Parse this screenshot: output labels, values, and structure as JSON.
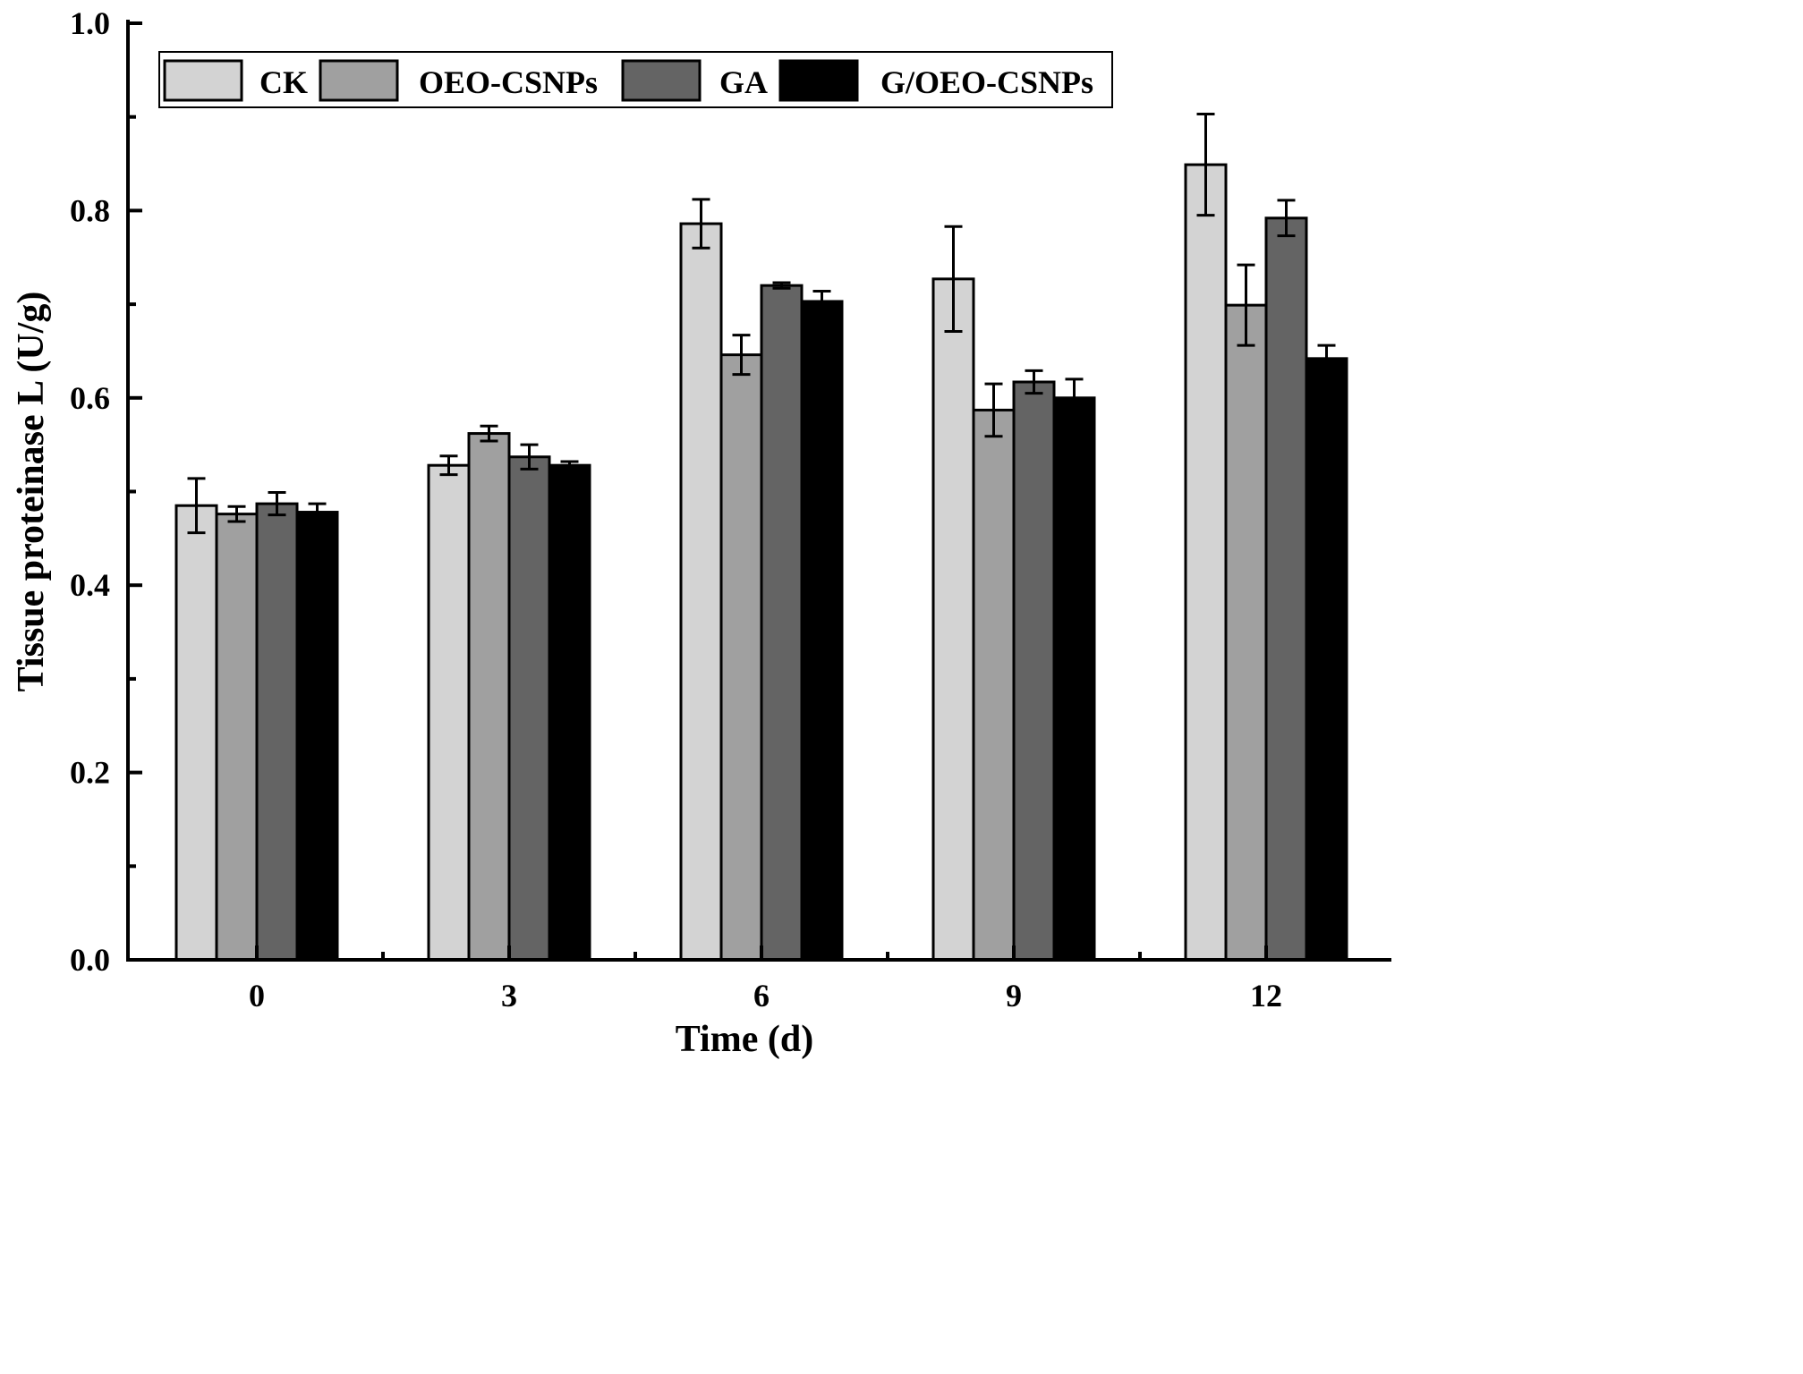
{
  "chart_data": {
    "type": "bar",
    "title": "",
    "xlabel": "Time (d)",
    "ylabel": "Tissue proteinase L (U/g)",
    "ylim": [
      0.0,
      1.0
    ],
    "yticks": [
      "0.0",
      "0.2",
      "0.4",
      "0.6",
      "0.8",
      "1.0"
    ],
    "categories": [
      "0",
      "3",
      "6",
      "9",
      "12"
    ],
    "legend_position": "top",
    "series": [
      {
        "name": "CK",
        "color": "#d3d3d3",
        "values": [
          0.485,
          0.528,
          0.786,
          0.727,
          0.849
        ],
        "errors": [
          0.029,
          0.01,
          0.026,
          0.056,
          0.054
        ]
      },
      {
        "name": "OEO-CSNPs",
        "color": "#a0a0a0",
        "values": [
          0.476,
          0.562,
          0.646,
          0.587,
          0.699
        ],
        "errors": [
          0.008,
          0.008,
          0.021,
          0.028,
          0.043
        ]
      },
      {
        "name": "GA",
        "color": "#646464",
        "values": [
          0.487,
          0.537,
          0.72,
          0.617,
          0.792
        ],
        "errors": [
          0.012,
          0.013,
          0.003,
          0.012,
          0.019
        ]
      },
      {
        "name": "G/OEO-CSNPs",
        "color": "#000000",
        "values": [
          0.478,
          0.528,
          0.703,
          0.6,
          0.642
        ],
        "errors": [
          0.009,
          0.004,
          0.011,
          0.02,
          0.014
        ]
      }
    ]
  }
}
